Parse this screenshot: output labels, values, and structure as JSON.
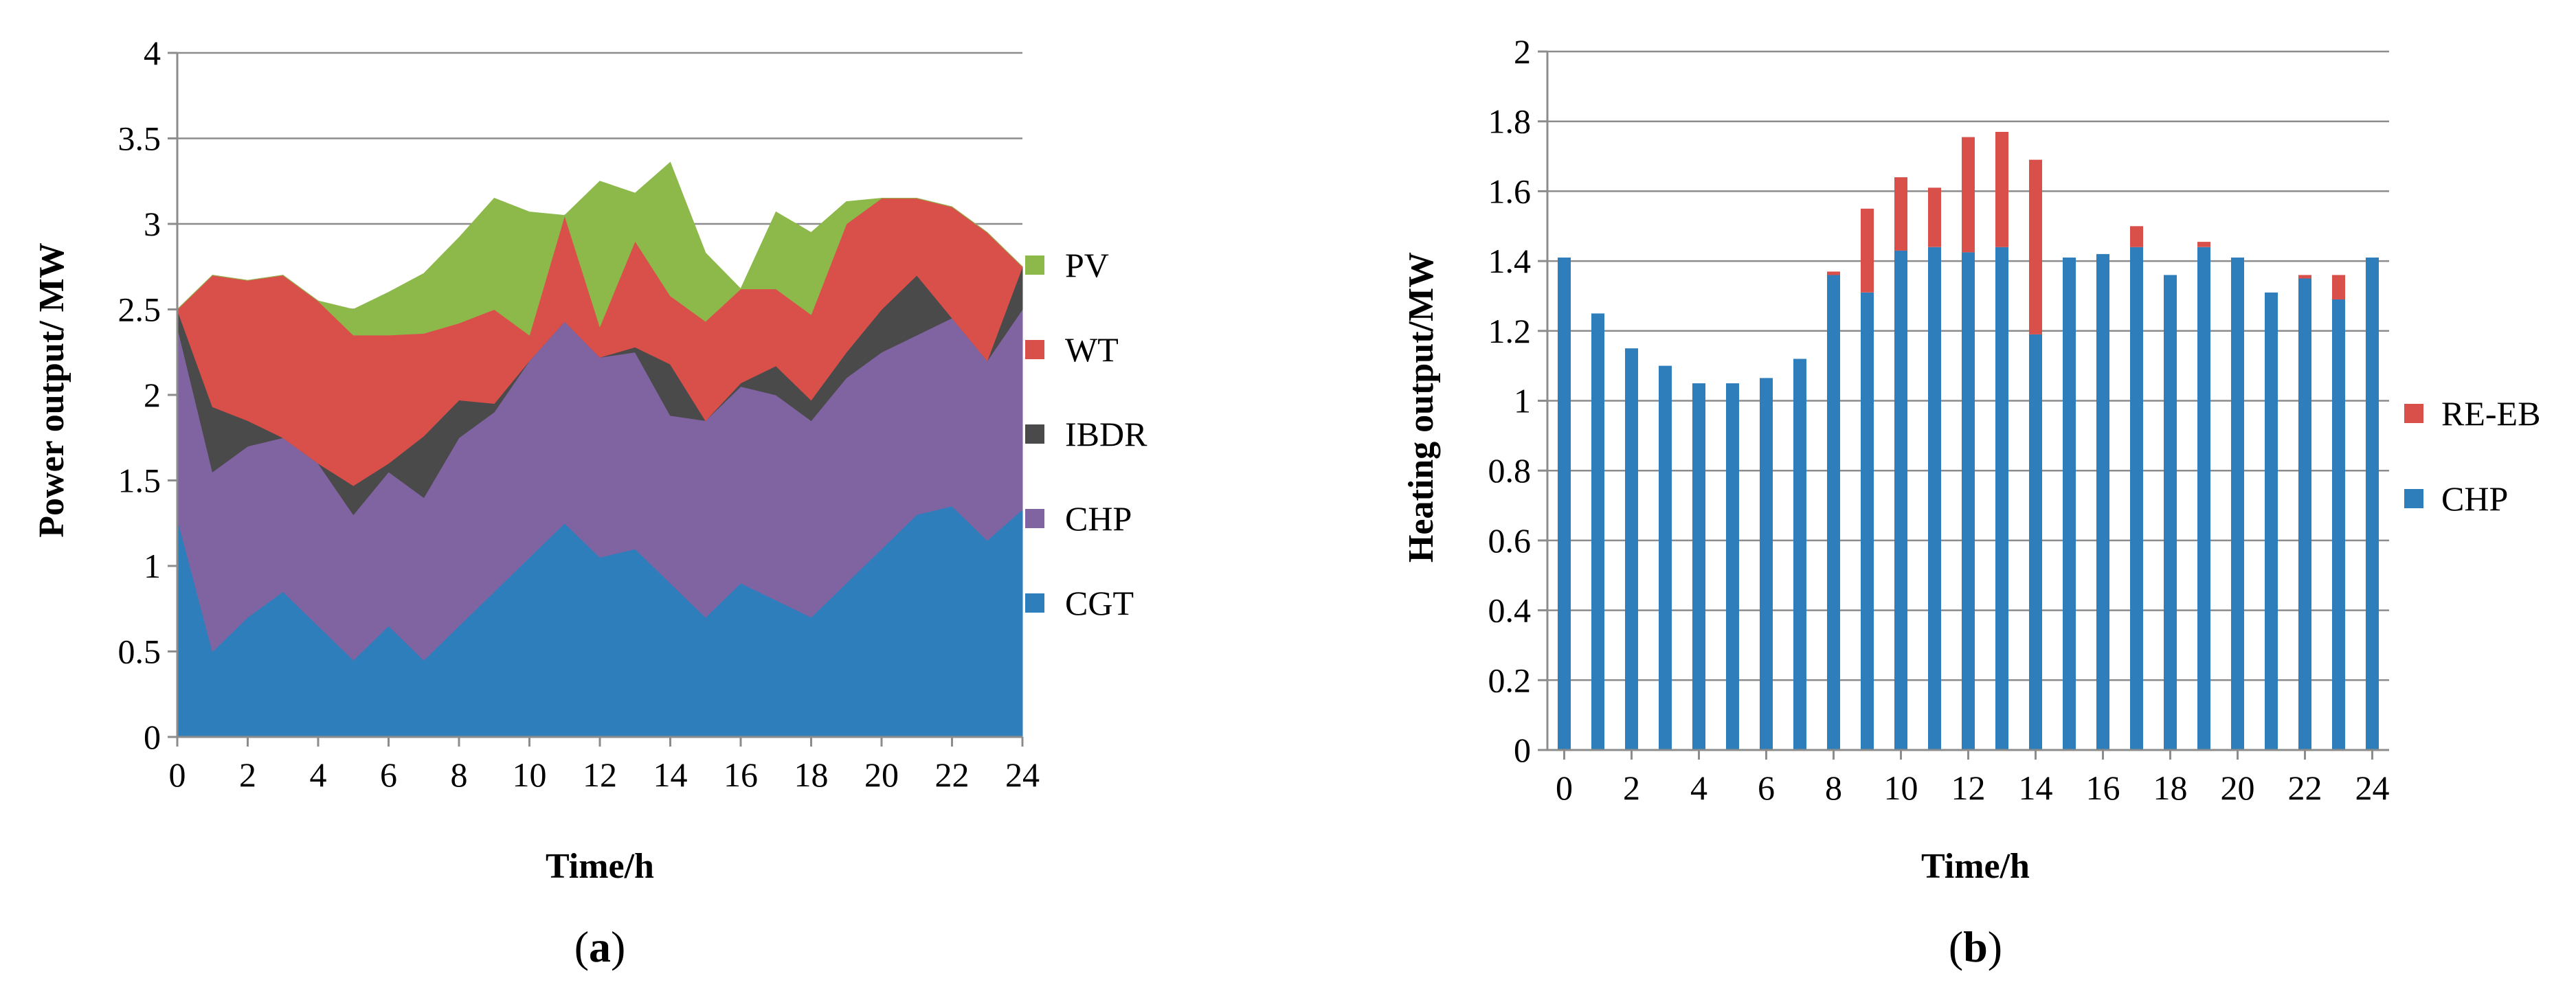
{
  "chart_data": [
    {
      "type": "area",
      "stacked": true,
      "panel_label": "a",
      "title": "",
      "xlabel": "Time/h",
      "ylabel": "Power output/  MW",
      "xlim": [
        0,
        24
      ],
      "ylim": [
        0,
        4
      ],
      "x_ticks": [
        0,
        2,
        4,
        6,
        8,
        10,
        12,
        14,
        16,
        18,
        20,
        22,
        24
      ],
      "y_ticks": [
        0,
        0.5,
        1,
        1.5,
        2,
        2.5,
        3,
        3.5,
        4
      ],
      "grid": "horizontal",
      "legend_position": "right",
      "x": [
        0,
        1,
        2,
        3,
        4,
        5,
        6,
        7,
        8,
        9,
        10,
        11,
        12,
        13,
        14,
        15,
        16,
        17,
        18,
        19,
        20,
        21,
        22,
        23,
        24
      ],
      "series": [
        {
          "name": "CGT",
          "color": "#2e7ebc",
          "values": [
            1.28,
            0.5,
            0.7,
            0.85,
            0.65,
            0.45,
            0.65,
            0.45,
            0.65,
            0.85,
            1.05,
            1.25,
            1.05,
            1.1,
            0.9,
            0.7,
            0.9,
            0.8,
            0.7,
            0.9,
            1.1,
            1.3,
            1.35,
            1.15,
            1.33
          ]
        },
        {
          "name": "CHP",
          "color": "#8064a2",
          "values": [
            1.12,
            1.05,
            1.0,
            0.9,
            0.95,
            0.85,
            0.9,
            0.95,
            1.1,
            1.05,
            1.15,
            1.18,
            1.17,
            1.15,
            0.98,
            1.15,
            1.15,
            1.2,
            1.15,
            1.2,
            1.15,
            1.05,
            1.1,
            1.05,
            1.17
          ]
        },
        {
          "name": "IBDR",
          "color": "#4a4a4a",
          "values": [
            0.1,
            0.38,
            0.15,
            0.0,
            0.0,
            0.17,
            0.05,
            0.36,
            0.22,
            0.05,
            0.0,
            0.0,
            0.0,
            0.03,
            0.3,
            0.0,
            0.02,
            0.17,
            0.12,
            0.15,
            0.25,
            0.35,
            0.0,
            0.0,
            0.25
          ]
        },
        {
          "name": "WT",
          "color": "#d9504b",
          "values": [
            0.0,
            0.77,
            0.82,
            0.95,
            0.95,
            0.88,
            0.75,
            0.6,
            0.45,
            0.55,
            0.15,
            0.62,
            0.18,
            0.62,
            0.4,
            0.58,
            0.55,
            0.45,
            0.5,
            0.75,
            0.65,
            0.45,
            0.65,
            0.75,
            0.0
          ]
        },
        {
          "name": "PV",
          "color": "#8db84a",
          "values": [
            0.0,
            0.0,
            0.0,
            0.0,
            0.0,
            0.15,
            0.25,
            0.35,
            0.5,
            0.65,
            0.72,
            0.0,
            0.85,
            0.28,
            0.78,
            0.4,
            0.0,
            0.45,
            0.48,
            0.13,
            0.0,
            0.0,
            0.0,
            0.0,
            0.0
          ]
        }
      ],
      "legend_order": [
        "PV",
        "WT",
        "IBDR",
        "CHP",
        "CGT"
      ]
    },
    {
      "type": "bar",
      "stacked": true,
      "panel_label": "b",
      "title": "",
      "xlabel": "Time/h",
      "ylabel": "Heating output/MW",
      "xlim": [
        -0.5,
        24.5
      ],
      "ylim": [
        0,
        2
      ],
      "x_ticks": [
        0,
        2,
        4,
        6,
        8,
        10,
        12,
        14,
        16,
        18,
        20,
        22,
        24
      ],
      "y_ticks": [
        0,
        0.2,
        0.4,
        0.6,
        0.8,
        1,
        1.2,
        1.4,
        1.6,
        1.8,
        2
      ],
      "grid": "horizontal",
      "legend_position": "right",
      "x": [
        0,
        1,
        2,
        3,
        4,
        5,
        6,
        7,
        8,
        9,
        10,
        11,
        12,
        13,
        14,
        15,
        16,
        17,
        18,
        19,
        20,
        21,
        22,
        23,
        24
      ],
      "series": [
        {
          "name": "CHP",
          "color": "#2e7ebc",
          "values": [
            1.41,
            1.25,
            1.15,
            1.1,
            1.05,
            1.05,
            1.065,
            1.12,
            1.36,
            1.31,
            1.43,
            1.44,
            1.425,
            1.44,
            1.19,
            1.41,
            1.42,
            1.44,
            1.36,
            1.44,
            1.41,
            1.31,
            1.35,
            1.29,
            1.41
          ]
        },
        {
          "name": "RE-EB",
          "color": "#d9504b",
          "values": [
            0,
            0,
            0,
            0,
            0,
            0,
            0,
            0,
            0.01,
            0.24,
            0.21,
            0.17,
            0.33,
            0.33,
            0.5,
            0,
            0,
            0.06,
            0,
            0.015,
            0,
            0,
            0.01,
            0.07,
            0
          ]
        }
      ],
      "legend_order": [
        "RE-EB",
        "CHP"
      ]
    }
  ]
}
